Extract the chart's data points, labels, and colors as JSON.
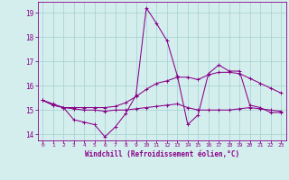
{
  "xlabel": "Windchill (Refroidissement éolien,°C)",
  "background_color": "#d4eeee",
  "grid_color": "#aad4d4",
  "line_color": "#880088",
  "x_ticks": [
    0,
    1,
    2,
    3,
    4,
    5,
    6,
    7,
    8,
    9,
    10,
    11,
    12,
    13,
    14,
    15,
    16,
    17,
    18,
    19,
    20,
    21,
    22,
    23
  ],
  "ylim": [
    13.75,
    19.45
  ],
  "xlim": [
    -0.5,
    23.5
  ],
  "yticks": [
    14,
    15,
    16,
    17,
    18,
    19
  ],
  "series": [
    {
      "x": [
        0,
        1,
        2,
        3,
        4,
        5,
        6,
        7,
        8,
        9,
        10,
        11,
        12,
        13,
        14,
        15,
        16,
        17,
        18,
        19,
        20,
        21,
        22,
        23
      ],
      "y": [
        15.4,
        15.2,
        15.1,
        14.6,
        14.5,
        14.4,
        13.9,
        14.3,
        14.85,
        15.6,
        19.2,
        18.55,
        17.85,
        16.4,
        14.4,
        14.8,
        16.5,
        16.85,
        16.6,
        16.6,
        15.2,
        15.1,
        14.9,
        14.9
      ]
    },
    {
      "x": [
        0,
        1,
        2,
        3,
        4,
        5,
        6,
        7,
        8,
        9,
        10,
        11,
        12,
        13,
        14,
        15,
        16,
        17,
        18,
        19,
        20,
        21,
        22,
        23
      ],
      "y": [
        15.4,
        15.25,
        15.1,
        15.1,
        15.1,
        15.1,
        15.1,
        15.15,
        15.3,
        15.55,
        15.85,
        16.1,
        16.2,
        16.35,
        16.35,
        16.25,
        16.45,
        16.55,
        16.55,
        16.5,
        16.3,
        16.1,
        15.9,
        15.7
      ]
    },
    {
      "x": [
        0,
        1,
        2,
        3,
        4,
        5,
        6,
        7,
        8,
        9,
        10,
        11,
        12,
        13,
        14,
        15,
        16,
        17,
        18,
        19,
        20,
        21,
        22,
        23
      ],
      "y": [
        15.4,
        15.2,
        15.1,
        15.05,
        15.0,
        15.0,
        14.95,
        15.0,
        15.0,
        15.05,
        15.1,
        15.15,
        15.2,
        15.25,
        15.1,
        15.0,
        15.0,
        15.0,
        15.0,
        15.05,
        15.1,
        15.05,
        15.0,
        14.95
      ]
    }
  ]
}
